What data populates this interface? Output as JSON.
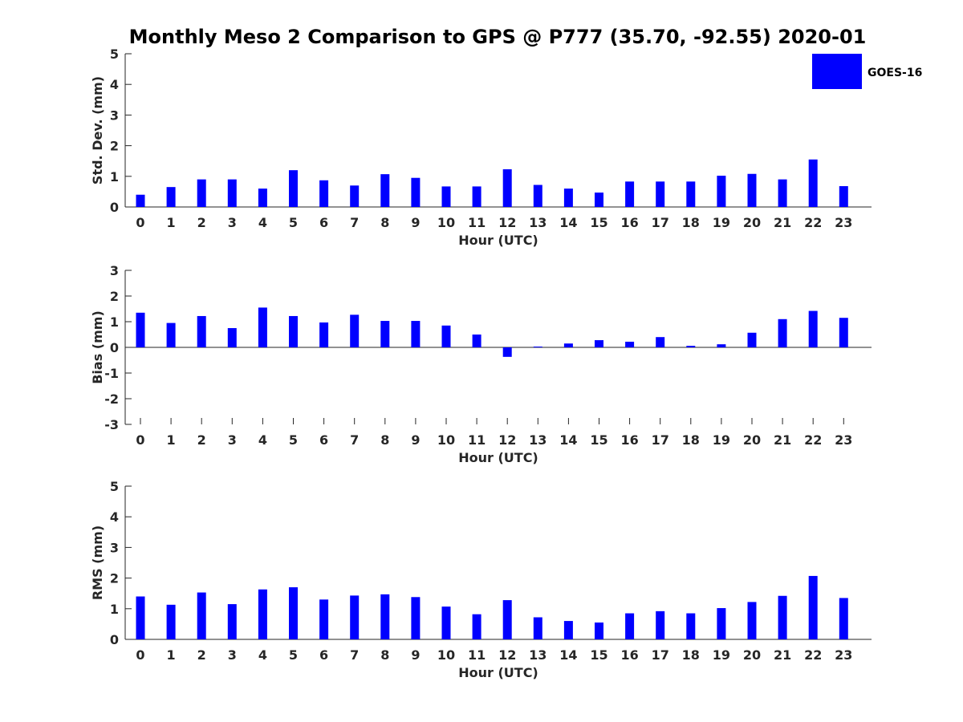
{
  "title": "Monthly Meso 2 Comparison to GPS @ P777 (35.70, -92.55) 2020-01",
  "legend": {
    "label": "GOES-16",
    "color": "#0000ff",
    "position": "top-right"
  },
  "chart_data": [
    {
      "type": "bar",
      "xlabel": "Hour (UTC)",
      "ylabel": "Std. Dev. (mm)",
      "ylim": [
        0,
        5
      ],
      "yticks": [
        0,
        1,
        2,
        3,
        4,
        5
      ],
      "categories": [
        "0",
        "1",
        "2",
        "3",
        "4",
        "5",
        "6",
        "7",
        "8",
        "9",
        "10",
        "11",
        "12",
        "13",
        "14",
        "15",
        "16",
        "17",
        "18",
        "19",
        "20",
        "21",
        "22",
        "23"
      ],
      "series": [
        {
          "name": "GOES-16",
          "color": "#0000ff",
          "values": [
            0.4,
            0.65,
            0.9,
            0.9,
            0.6,
            1.2,
            0.87,
            0.7,
            1.07,
            0.95,
            0.67,
            0.67,
            1.23,
            0.72,
            0.6,
            0.47,
            0.83,
            0.83,
            0.83,
            1.02,
            1.08,
            0.9,
            1.55,
            0.68
          ]
        }
      ]
    },
    {
      "type": "bar",
      "xlabel": "Hour (UTC)",
      "ylabel": "Bias (mm)",
      "ylim": [
        -3,
        3
      ],
      "yticks": [
        -3,
        -2,
        -1,
        0,
        1,
        2,
        3
      ],
      "categories": [
        "0",
        "1",
        "2",
        "3",
        "4",
        "5",
        "6",
        "7",
        "8",
        "9",
        "10",
        "11",
        "12",
        "13",
        "14",
        "15",
        "16",
        "17",
        "18",
        "19",
        "20",
        "21",
        "22",
        "23"
      ],
      "series": [
        {
          "name": "GOES-16",
          "color": "#0000ff",
          "values": [
            1.35,
            0.95,
            1.22,
            0.75,
            1.55,
            1.22,
            0.97,
            1.27,
            1.03,
            1.03,
            0.85,
            0.5,
            -0.37,
            0.03,
            0.15,
            0.28,
            0.22,
            0.4,
            0.06,
            0.12,
            0.57,
            1.1,
            1.42,
            1.15
          ]
        }
      ]
    },
    {
      "type": "bar",
      "xlabel": "Hour (UTC)",
      "ylabel": "RMS (mm)",
      "ylim": [
        0,
        5
      ],
      "yticks": [
        0,
        1,
        2,
        3,
        4,
        5
      ],
      "categories": [
        "0",
        "1",
        "2",
        "3",
        "4",
        "5",
        "6",
        "7",
        "8",
        "9",
        "10",
        "11",
        "12",
        "13",
        "14",
        "15",
        "16",
        "17",
        "18",
        "19",
        "20",
        "21",
        "22",
        "23"
      ],
      "series": [
        {
          "name": "GOES-16",
          "color": "#0000ff",
          "values": [
            1.4,
            1.13,
            1.53,
            1.15,
            1.63,
            1.7,
            1.3,
            1.43,
            1.47,
            1.38,
            1.07,
            0.82,
            1.28,
            0.72,
            0.6,
            0.55,
            0.85,
            0.92,
            0.85,
            1.02,
            1.22,
            1.42,
            2.07,
            1.35
          ]
        }
      ]
    }
  ]
}
